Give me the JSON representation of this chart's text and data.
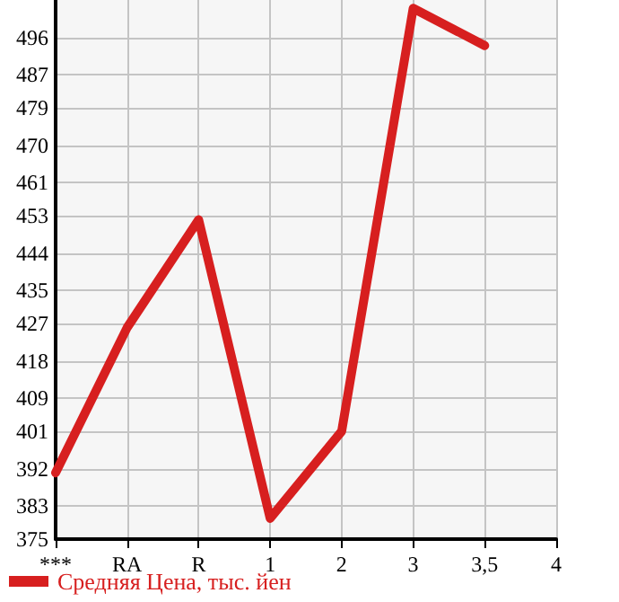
{
  "chart_data": {
    "type": "line",
    "categories": [
      "***",
      "RA",
      "R",
      "1",
      "2",
      "3",
      "3,5",
      "4"
    ],
    "series": [
      {
        "name": "Средняя Цена, тыс. йен",
        "color": "#d71f1f",
        "values": [
          391,
          426,
          452,
          380,
          401,
          503,
          494,
          null
        ]
      }
    ],
    "ylim": [
      375,
      505
    ],
    "yticks": [
      375,
      383,
      392,
      401,
      409,
      418,
      427,
      435,
      444,
      453,
      461,
      470,
      479,
      487,
      496
    ],
    "grid": true,
    "legend": "bottom left",
    "marker": "none",
    "line_style": "solid"
  }
}
